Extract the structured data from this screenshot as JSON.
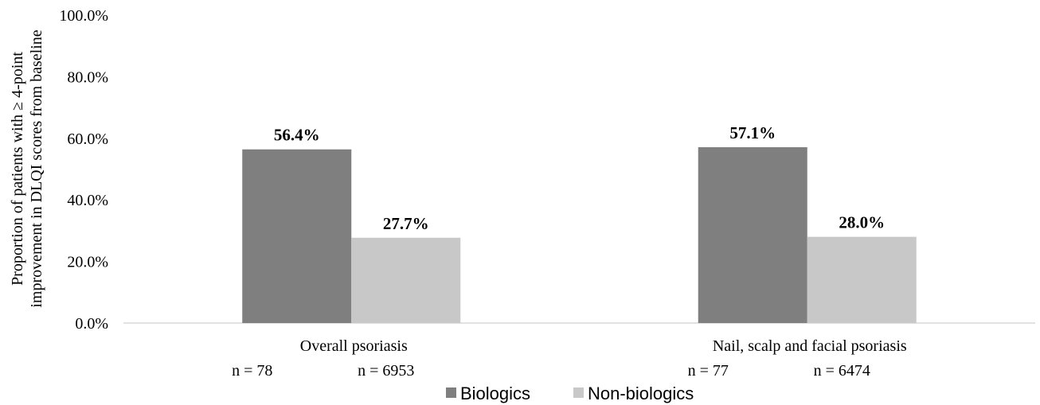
{
  "chart_data": {
    "type": "bar",
    "categories": [
      "Overall psoriasis",
      "Nail, scalp and facial psoriasis"
    ],
    "category_ns": [
      [
        "n = 78",
        "n = 6953"
      ],
      [
        "n = 77",
        "n = 6474"
      ]
    ],
    "series": [
      {
        "name": "Biologics",
        "values": [
          56.4,
          57.1
        ],
        "labels": [
          "56.4%",
          "57.1%"
        ],
        "color": "#7f7f7f"
      },
      {
        "name": "Non-biologics",
        "values": [
          27.7,
          28.0
        ],
        "labels": [
          "27.7%",
          "28.0%"
        ],
        "color": "#c8c8c8"
      }
    ],
    "ylabel_lines": [
      "Proportion of patients with ≥ 4-point",
      "improvement in DLQI scores from baseline"
    ],
    "ylim": [
      0,
      100
    ],
    "yticks": [
      "0.0%",
      "20.0%",
      "40.0%",
      "60.0%",
      "80.0%",
      "100.0%"
    ],
    "grid": false,
    "legend_position": "bottom"
  }
}
